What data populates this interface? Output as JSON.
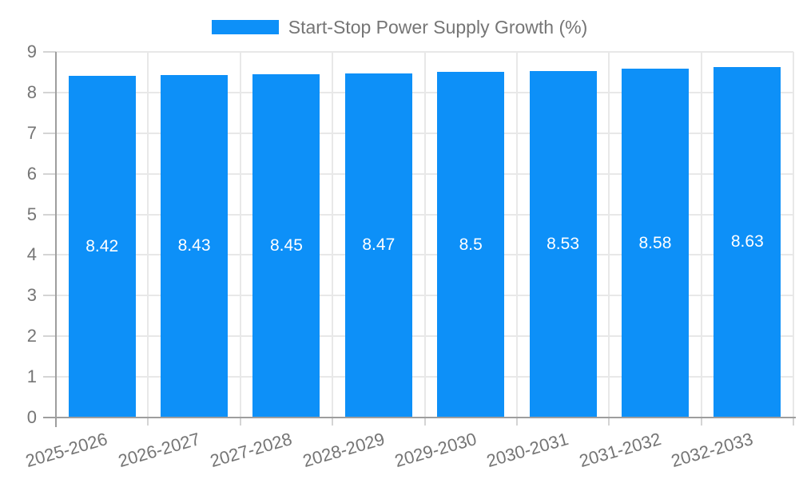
{
  "legend": {
    "label": "Start-Stop Power Supply Growth (%)"
  },
  "chart_data": {
    "type": "bar",
    "title": "Start-Stop Power Supply Growth (%)",
    "categories": [
      "2025-2026",
      "2026-2027",
      "2027-2028",
      "2028-2029",
      "2029-2030",
      "2030-2031",
      "2031-2032",
      "2032-2033"
    ],
    "series": [
      {
        "name": "Start-Stop Power Supply Growth (%)",
        "values": [
          8.42,
          8.43,
          8.45,
          8.47,
          8.5,
          8.53,
          8.58,
          8.63
        ]
      }
    ],
    "value_labels": [
      "8.42",
      "8.43",
      "8.45",
      "8.47",
      "8.5",
      "8.53",
      "8.58",
      "8.63"
    ],
    "xlabel": "",
    "ylabel": "",
    "ylim": [
      0,
      9
    ],
    "yticks": [
      0,
      1,
      2,
      3,
      4,
      5,
      6,
      7,
      8,
      9
    ],
    "grid": true,
    "legend_position": "top",
    "colors": {
      "bar": "#0d90f8",
      "axis_text": "#757575",
      "gridline": "#e8e8e8",
      "axis_line": "#9e9e9e",
      "tick": "#d4d4d4",
      "value_label": "#ffffff"
    }
  }
}
